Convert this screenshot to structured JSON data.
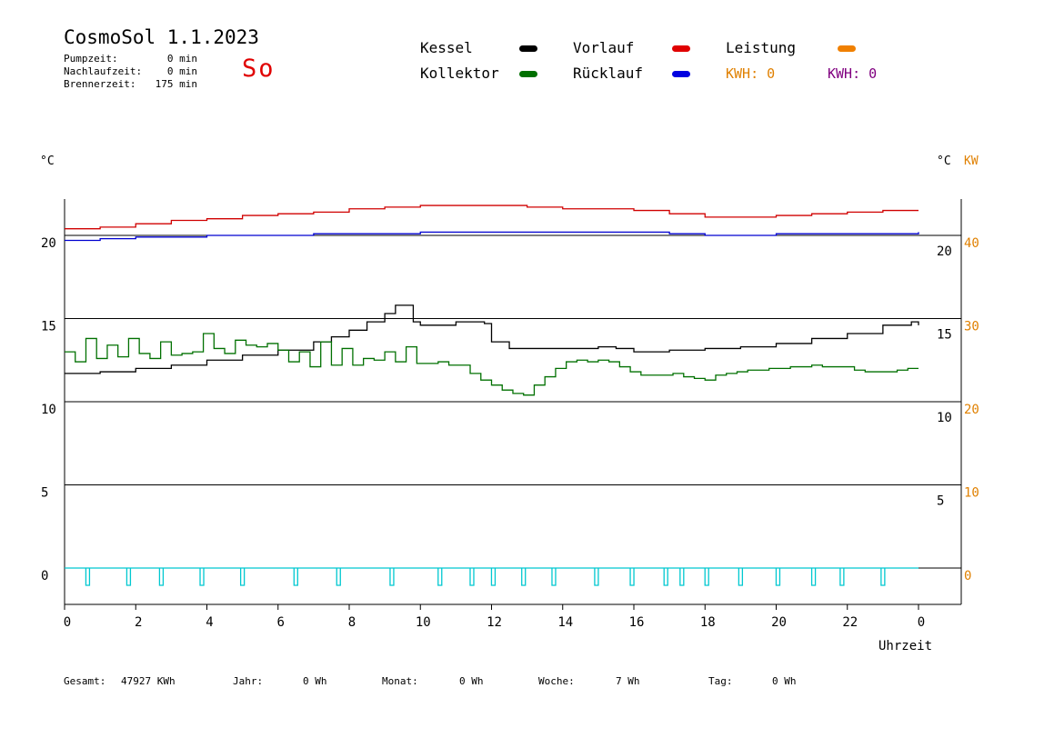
{
  "header": {
    "title": "CosmoSol 1.1.2023",
    "day": "So",
    "stats": [
      {
        "label": "Pumpzeit:",
        "value": "0 min"
      },
      {
        "label": "Nachlaufzeit:",
        "value": "0 min"
      },
      {
        "label": "Brennerzeit:",
        "value": "175 min"
      }
    ]
  },
  "legend": {
    "kessel": {
      "label": "Kessel",
      "color": "#000000"
    },
    "vorlauf": {
      "label": "Vorlauf",
      "color": "#e00000"
    },
    "leistung": {
      "label": "Leistung",
      "color": "#f08000"
    },
    "kollektor": {
      "label": "Kollektor",
      "color": "#007000"
    },
    "ruecklauf": {
      "label": "Rücklauf",
      "color": "#0000e0"
    },
    "kwh1": {
      "label": "KWH: 0",
      "color": "#e08000"
    },
    "kwh2": {
      "label": "KWH: 0",
      "color": "#800080"
    }
  },
  "footer": {
    "gesamt_label": "Gesamt:",
    "gesamt_value": "47927 KWh",
    "jahr_label": "Jahr:",
    "jahr_value": "0 Wh",
    "monat_label": "Monat:",
    "monat_value": "0 Wh",
    "woche_label": "Woche:",
    "woche_value": "7 Wh",
    "tag_label": "Tag:",
    "tag_value": "0 Wh"
  },
  "chart_data": {
    "type": "line",
    "xlabel": "Uhrzeit",
    "ylabel_left": "°C",
    "ylabel_right": "°C",
    "ylabel_right2": "KW",
    "x_ticks": [
      "0",
      "2",
      "4",
      "6",
      "8",
      "10",
      "12",
      "14",
      "16",
      "18",
      "20",
      "22",
      "0"
    ],
    "xlim": [
      0,
      24
    ],
    "ylim": [
      -2,
      22
    ],
    "left_ticks": [
      {
        "v": 20,
        "t": "20"
      },
      {
        "v": 15,
        "t": "15"
      },
      {
        "v": 10,
        "t": "10"
      },
      {
        "v": 5,
        "t": "5"
      },
      {
        "v": 0,
        "t": "0"
      }
    ],
    "right_ticks": [
      {
        "v": 20,
        "t": "20"
      },
      {
        "v": 15,
        "t": "15"
      },
      {
        "v": 10,
        "t": "10"
      },
      {
        "v": 5,
        "t": "5"
      }
    ],
    "kw_ticks": [
      {
        "v": 20,
        "t": "40"
      },
      {
        "v": 15,
        "t": "30"
      },
      {
        "v": 10,
        "t": "20"
      },
      {
        "v": 5,
        "t": "10"
      },
      {
        "v": 0,
        "t": "0"
      }
    ],
    "grid_y": [
      20,
      15,
      10,
      5,
      0
    ],
    "series": [
      {
        "name": "Vorlauf",
        "color": "#d00000",
        "x": [
          0,
          1,
          2,
          3,
          4,
          5,
          6,
          7,
          8,
          9,
          10,
          11,
          12,
          13,
          14,
          15,
          16,
          17,
          18,
          19,
          20,
          21,
          22,
          23,
          24
        ],
        "y": [
          20.4,
          20.5,
          20.7,
          20.9,
          21.0,
          21.2,
          21.3,
          21.4,
          21.6,
          21.7,
          21.8,
          21.8,
          21.8,
          21.7,
          21.6,
          21.6,
          21.5,
          21.3,
          21.1,
          21.1,
          21.2,
          21.3,
          21.4,
          21.5,
          21.5
        ]
      },
      {
        "name": "Rücklauf",
        "color": "#0000d0",
        "x": [
          0,
          1,
          2,
          3,
          4,
          5,
          6,
          7,
          8,
          9,
          10,
          11,
          12,
          13,
          14,
          15,
          16,
          17,
          18,
          19,
          20,
          21,
          22,
          23,
          24
        ],
        "y": [
          19.7,
          19.8,
          19.9,
          19.9,
          20.0,
          20.0,
          20.0,
          20.1,
          20.1,
          20.1,
          20.2,
          20.2,
          20.2,
          20.2,
          20.2,
          20.2,
          20.2,
          20.1,
          20.0,
          20.0,
          20.1,
          20.1,
          20.1,
          20.1,
          20.2
        ]
      },
      {
        "name": "Kessel",
        "color": "#000000",
        "x": [
          0,
          1,
          2,
          3,
          4,
          5,
          6,
          7,
          7.5,
          8,
          8.5,
          9,
          9.3,
          9.6,
          9.8,
          10,
          11,
          11.8,
          12,
          12.5,
          13,
          14,
          15,
          15.5,
          16,
          17,
          18,
          19,
          20,
          21,
          22,
          23,
          23.8,
          24
        ],
        "y": [
          11.7,
          11.8,
          12.0,
          12.2,
          12.5,
          12.8,
          13.1,
          13.6,
          13.9,
          14.3,
          14.8,
          15.3,
          15.8,
          15.8,
          14.8,
          14.6,
          14.8,
          14.7,
          13.6,
          13.2,
          13.2,
          13.2,
          13.3,
          13.2,
          13.0,
          13.1,
          13.2,
          13.3,
          13.5,
          13.8,
          14.1,
          14.6,
          14.8,
          14.6
        ]
      },
      {
        "name": "Kollektor",
        "color": "#007000",
        "x": [
          0,
          0.3,
          0.6,
          0.9,
          1.2,
          1.5,
          1.8,
          2.1,
          2.4,
          2.7,
          3.0,
          3.3,
          3.6,
          3.9,
          4.2,
          4.5,
          4.8,
          5.1,
          5.4,
          5.7,
          6.0,
          6.3,
          6.6,
          6.9,
          7.2,
          7.5,
          7.8,
          8.1,
          8.4,
          8.7,
          9.0,
          9.3,
          9.6,
          9.9,
          10.2,
          10.5,
          10.8,
          11.1,
          11.4,
          11.7,
          12.0,
          12.3,
          12.6,
          12.9,
          13.2,
          13.5,
          13.8,
          14.1,
          14.4,
          14.7,
          15.0,
          15.3,
          15.6,
          15.9,
          16.2,
          16.5,
          16.8,
          17.1,
          17.4,
          17.7,
          18.0,
          18.3,
          18.6,
          18.9,
          19.2,
          19.5,
          19.8,
          20.1,
          20.4,
          20.7,
          21.0,
          21.3,
          21.6,
          21.9,
          22.2,
          22.5,
          22.8,
          23.1,
          23.4,
          23.7,
          24.0
        ],
        "y": [
          13.0,
          12.4,
          13.8,
          12.6,
          13.4,
          12.7,
          13.8,
          12.9,
          12.6,
          13.6,
          12.8,
          12.9,
          13.0,
          14.1,
          13.2,
          12.9,
          13.7,
          13.4,
          13.3,
          13.5,
          13.1,
          12.4,
          13.0,
          12.1,
          13.6,
          12.2,
          13.2,
          12.2,
          12.6,
          12.5,
          13.0,
          12.4,
          13.3,
          12.3,
          12.3,
          12.4,
          12.2,
          12.2,
          11.7,
          11.3,
          11.0,
          10.7,
          10.5,
          10.4,
          11.0,
          11.5,
          12.0,
          12.4,
          12.5,
          12.4,
          12.5,
          12.4,
          12.1,
          11.8,
          11.6,
          11.6,
          11.6,
          11.7,
          11.5,
          11.4,
          11.3,
          11.6,
          11.7,
          11.8,
          11.9,
          11.9,
          12.0,
          12.0,
          12.1,
          12.1,
          12.2,
          12.1,
          12.1,
          12.1,
          11.9,
          11.8,
          11.8,
          11.8,
          11.9,
          12.0,
          12.0
        ]
      }
    ],
    "pump_pulses_x": [
      0.65,
      1.8,
      2.72,
      3.86,
      5.0,
      6.5,
      7.7,
      9.2,
      10.55,
      11.45,
      12.05,
      12.9,
      13.75,
      14.95,
      15.95,
      16.9,
      17.35,
      18.05,
      19.0,
      20.05,
      21.05,
      21.85,
      23.0
    ],
    "pump_color": "#00c8d0"
  }
}
